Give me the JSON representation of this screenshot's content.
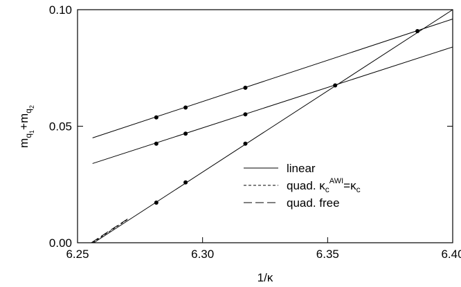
{
  "chart_data": {
    "type": "line",
    "xlabel": {
      "base": "1/",
      "kappa": "κ"
    },
    "ylabel": {
      "m": "m",
      "q": "q",
      "one": "1",
      "plus": "+",
      "two": "2"
    },
    "xlim": [
      6.25,
      6.4
    ],
    "ylim": [
      0.0,
      0.1
    ],
    "x_ticks": [
      "6.25",
      "6.30",
      "6.35",
      "6.40"
    ],
    "x_tick_values": [
      6.25,
      6.3,
      6.35,
      6.4
    ],
    "y_ticks": [
      "0.00",
      "0.05",
      "0.10"
    ],
    "y_tick_values": [
      0.0,
      0.05,
      0.1
    ],
    "grid": false,
    "legend_position": "lower-right",
    "legend": [
      {
        "label": "linear",
        "dash": "solid"
      },
      {
        "label_pre": "quad. ",
        "label_kappa": "κ",
        "label_sup": "AWI",
        "label_eq": "=",
        "label_kappa2": "κ",
        "label_sub": "c",
        "dash": "short-dash"
      },
      {
        "label": "quad. free",
        "dash": "long-dash"
      }
    ],
    "series": [
      {
        "style": "solid",
        "line_x": [
          6.256,
          6.4
        ],
        "line_y": [
          0.045,
          0.096
        ],
        "points_x": [
          6.2815,
          6.2932,
          6.3171,
          6.3859
        ],
        "points_y": [
          0.0538,
          0.058,
          0.0665,
          0.0908
        ]
      },
      {
        "style": "solid",
        "line_x": [
          6.256,
          6.4
        ],
        "line_y": [
          0.034,
          0.084
        ],
        "points_x": [
          6.2815,
          6.2932,
          6.3171,
          6.353
        ],
        "points_y": [
          0.0425,
          0.0468,
          0.0551,
          0.0675
        ]
      },
      {
        "style": "solid",
        "line_x": [
          6.2565,
          6.4
        ],
        "line_y": [
          0.0,
          0.1
        ],
        "points_x": [
          6.2815,
          6.2932,
          6.3171
        ],
        "points_y": [
          0.0172,
          0.0259,
          0.0425
        ]
      },
      {
        "style": "short-dash",
        "line_x": [
          6.256,
          6.27
        ],
        "line_y": [
          0.0,
          0.01
        ],
        "points_x": [],
        "points_y": []
      },
      {
        "style": "long-dash",
        "line_x": [
          6.2555,
          6.27
        ],
        "line_y": [
          0.0,
          0.0102
        ],
        "points_x": [],
        "points_y": []
      }
    ]
  }
}
